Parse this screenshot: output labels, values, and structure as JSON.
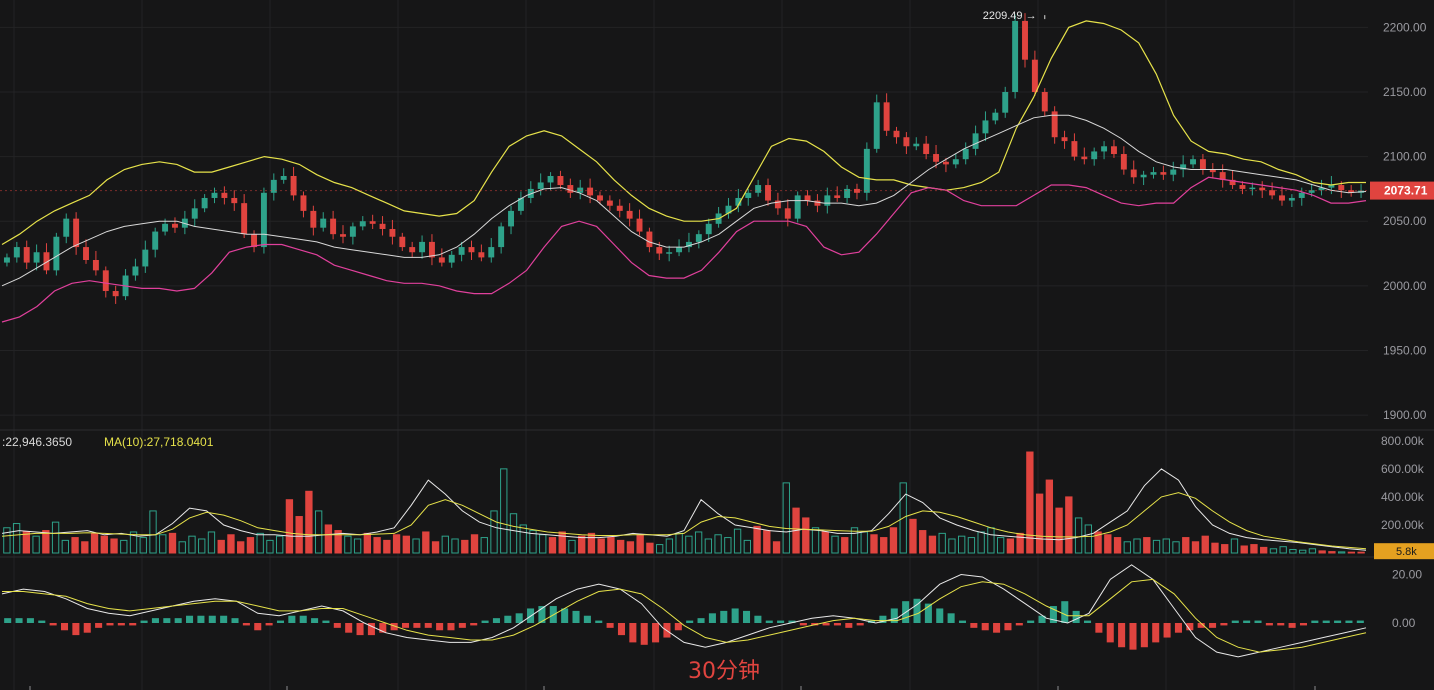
{
  "colors": {
    "background": "#161617",
    "grid": "#232325",
    "up": "#2ea28a",
    "down": "#e0443f",
    "upper_band": "#e6e24a",
    "lower_band": "#e0409c",
    "mid_band": "#d8d8d8",
    "axis_text": "#9a9aa0",
    "volume_ma_a": "#e8e8e8",
    "volume_ma_b": "#e6e24a"
  },
  "chart_data": [
    {
      "type": "candlestick",
      "panel": "price",
      "y_ticks": [
        "2200.00",
        "2150.00",
        "2100.00",
        "2050.00",
        "2000.00",
        "1950.00",
        "1900.00"
      ],
      "y_tick_values": [
        2200,
        2150,
        2100,
        2050,
        2000,
        1950,
        1900
      ],
      "ylim": [
        1890,
        2215
      ],
      "high_marker": {
        "label": "2209.49 →",
        "value": 2209.49
      },
      "last_price": {
        "label": "2073.71",
        "value": 2073.71
      },
      "closes": [
        2022,
        2030,
        2018,
        2026,
        2012,
        2038,
        2052,
        2030,
        2020,
        2012,
        1996,
        1992,
        2008,
        2015,
        2028,
        2042,
        2048,
        2045,
        2052,
        2060,
        2068,
        2072,
        2068,
        2064,
        2040,
        2030,
        2072,
        2082,
        2085,
        2070,
        2058,
        2045,
        2052,
        2040,
        2038,
        2046,
        2050,
        2048,
        2044,
        2038,
        2030,
        2026,
        2034,
        2022,
        2018,
        2024,
        2030,
        2026,
        2022,
        2030,
        2046,
        2058,
        2068,
        2075,
        2080,
        2085,
        2078,
        2072,
        2076,
        2070,
        2066,
        2062,
        2058,
        2052,
        2042,
        2030,
        2025,
        2026,
        2030,
        2034,
        2040,
        2048,
        2056,
        2062,
        2068,
        2072,
        2078,
        2066,
        2060,
        2052,
        2070,
        2066,
        2062,
        2070,
        2068,
        2075,
        2072,
        2106,
        2142,
        2120,
        2115,
        2108,
        2110,
        2102,
        2096,
        2094,
        2098,
        2106,
        2118,
        2128,
        2134,
        2150,
        2205,
        2175,
        2150,
        2135,
        2115,
        2112,
        2100,
        2098,
        2104,
        2108,
        2102,
        2090,
        2084,
        2086,
        2088,
        2086,
        2090,
        2094,
        2098,
        2090,
        2088,
        2082,
        2078,
        2075,
        2076,
        2074,
        2070,
        2066,
        2068,
        2072,
        2074,
        2076,
        2078,
        2074,
        2072,
        2073.71
      ],
      "upper_band": [
        2032,
        2040,
        2050,
        2058,
        2064,
        2070,
        2082,
        2090,
        2094,
        2096,
        2094,
        2088,
        2088,
        2092,
        2096,
        2100,
        2098,
        2094,
        2086,
        2080,
        2076,
        2070,
        2064,
        2058,
        2056,
        2054,
        2056,
        2066,
        2088,
        2108,
        2116,
        2120,
        2116,
        2106,
        2096,
        2082,
        2070,
        2060,
        2054,
        2050,
        2050,
        2052,
        2060,
        2084,
        2108,
        2114,
        2112,
        2104,
        2092,
        2084,
        2082,
        2082,
        2078,
        2076,
        2074,
        2076,
        2080,
        2088,
        2122,
        2146,
        2176,
        2200,
        2205,
        2203,
        2198,
        2188,
        2164,
        2132,
        2112,
        2104,
        2102,
        2098,
        2096,
        2090,
        2086,
        2080,
        2078,
        2080,
        2080
      ],
      "lower_band": [
        1972,
        1976,
        1984,
        1996,
        2002,
        2004,
        2002,
        2000,
        1998,
        1998,
        1996,
        1998,
        2010,
        2026,
        2030,
        2032,
        2032,
        2028,
        2024,
        2016,
        2012,
        2008,
        2004,
        2002,
        2002,
        2000,
        1996,
        1994,
        1994,
        2002,
        2012,
        2030,
        2046,
        2050,
        2046,
        2032,
        2018,
        2008,
        2006,
        2006,
        2012,
        2026,
        2042,
        2050,
        2050,
        2050,
        2046,
        2030,
        2024,
        2026,
        2040,
        2056,
        2072,
        2076,
        2074,
        2066,
        2062,
        2062,
        2062,
        2070,
        2078,
        2078,
        2076,
        2070,
        2064,
        2062,
        2064,
        2064,
        2076,
        2084,
        2082,
        2080,
        2078,
        2076,
        2074,
        2070,
        2064,
        2064,
        2066
      ],
      "mid_band": [
        2000,
        2006,
        2014,
        2022,
        2030,
        2036,
        2042,
        2046,
        2048,
        2050,
        2050,
        2046,
        2044,
        2042,
        2040,
        2040,
        2038,
        2036,
        2034,
        2030,
        2028,
        2026,
        2024,
        2022,
        2022,
        2024,
        2030,
        2040,
        2052,
        2062,
        2070,
        2075,
        2076,
        2072,
        2066,
        2054,
        2042,
        2034,
        2030,
        2030,
        2034,
        2040,
        2050,
        2060,
        2064,
        2066,
        2066,
        2064,
        2064,
        2062,
        2064,
        2070,
        2080,
        2090,
        2098,
        2106,
        2112,
        2118,
        2124,
        2130,
        2132,
        2132,
        2128,
        2122,
        2114,
        2104,
        2096,
        2092,
        2090,
        2090,
        2090,
        2088,
        2086,
        2084,
        2082,
        2078,
        2074,
        2072,
        2073
      ]
    },
    {
      "type": "bar",
      "panel": "volume",
      "legend_text": ":22,946.3650",
      "ma_label": "MA(10):27,718.0401",
      "y_ticks": [
        "800.00k",
        "600.00k",
        "400.00k",
        "200.00k"
      ],
      "y_tick_values": [
        800,
        600,
        400,
        200
      ],
      "ylim": [
        0,
        820
      ],
      "unit": "k",
      "last_volume": {
        "label": "5.8k",
        "value": 5.8
      },
      "volumes": [
        180,
        210,
        150,
        120,
        160,
        220,
        90,
        110,
        80,
        140,
        120,
        100,
        90,
        150,
        110,
        300,
        130,
        140,
        80,
        120,
        100,
        150,
        90,
        130,
        80,
        110,
        140,
        90,
        120,
        380,
        260,
        440,
        300,
        200,
        160,
        120,
        100,
        140,
        110,
        90,
        130,
        120,
        100,
        150,
        80,
        120,
        100,
        90,
        130,
        110,
        300,
        600,
        280,
        200,
        160,
        130,
        110,
        150,
        90,
        120,
        140,
        100,
        110,
        90,
        80,
        130,
        70,
        60,
        100,
        140,
        120,
        150,
        100,
        130,
        110,
        170,
        90,
        190,
        160,
        80,
        500,
        320,
        250,
        180,
        150,
        120,
        110,
        180,
        150,
        130,
        110,
        180,
        500,
        240,
        160,
        120,
        140,
        100,
        120,
        110,
        150,
        180,
        110,
        100,
        140,
        720,
        420,
        520,
        320,
        400,
        250,
        200,
        150,
        130,
        110,
        80,
        100,
        110,
        90,
        100,
        80,
        110,
        80,
        120,
        70,
        60,
        100,
        50,
        60,
        40,
        30,
        45,
        25,
        20,
        30,
        15,
        10,
        8,
        6,
        5.8
      ],
      "ma_a": [
        140,
        160,
        150,
        140,
        150,
        160,
        130,
        140,
        120,
        130,
        210,
        320,
        300,
        200,
        160,
        130,
        130,
        120,
        120,
        130,
        140,
        130,
        150,
        180,
        340,
        520,
        420,
        300,
        220,
        180,
        160,
        140,
        130,
        120,
        110,
        110,
        120,
        140,
        130,
        120,
        160,
        380,
        280,
        200,
        180,
        160,
        150,
        170,
        160,
        140,
        140,
        160,
        280,
        420,
        360,
        250,
        200,
        160,
        130,
        120,
        110,
        100,
        95,
        110,
        140,
        220,
        300,
        480,
        600,
        520,
        330,
        200,
        140,
        110,
        95,
        85,
        75,
        60,
        45,
        30,
        20
      ],
      "ma_b": [
        120,
        130,
        140,
        140,
        140,
        145,
        140,
        135,
        130,
        130,
        170,
        250,
        290,
        270,
        230,
        180,
        160,
        140,
        130,
        130,
        130,
        130,
        135,
        140,
        200,
        340,
        380,
        340,
        280,
        220,
        190,
        170,
        150,
        140,
        130,
        125,
        125,
        130,
        130,
        130,
        140,
        220,
        260,
        250,
        220,
        190,
        175,
        170,
        165,
        160,
        155,
        155,
        190,
        260,
        300,
        290,
        260,
        220,
        180,
        150,
        130,
        120,
        115,
        115,
        120,
        150,
        200,
        300,
        400,
        430,
        390,
        300,
        220,
        160,
        120,
        100,
        80,
        65,
        50,
        40,
        30
      ]
    },
    {
      "type": "histogram",
      "panel": "macd",
      "y_ticks": [
        "20.00",
        "0.00"
      ],
      "y_tick_values": [
        20,
        0
      ],
      "ylim": [
        -26,
        26
      ],
      "histogram": [
        2,
        2,
        2,
        1,
        -1,
        -3,
        -5,
        -4,
        -2,
        -1,
        -1,
        -1,
        1,
        2,
        2,
        2,
        3,
        3,
        3,
        3,
        2,
        -1,
        -3,
        -1,
        1,
        3,
        3,
        2,
        1,
        -2,
        -4,
        -5,
        -5,
        -4,
        -3,
        -2,
        -2,
        -2,
        -3,
        -3,
        -2,
        -1,
        1,
        2,
        3,
        4,
        6,
        7,
        7,
        6,
        5,
        3,
        1,
        -2,
        -5,
        -8,
        -9,
        -8,
        -6,
        -3,
        1,
        2,
        4,
        5,
        6,
        5,
        3,
        1,
        1,
        1,
        -1,
        -1,
        -1,
        -1,
        -2,
        -1,
        1,
        3,
        6,
        9,
        10,
        8,
        6,
        4,
        1,
        -2,
        -3,
        -4,
        -3,
        -1,
        1,
        3,
        7,
        9,
        5,
        1,
        -4,
        -8,
        -10,
        -11,
        -10,
        -8,
        -6,
        -4,
        -3,
        -2,
        -2,
        -1,
        1,
        1,
        1,
        -1,
        -1,
        -2,
        -1,
        1,
        1,
        1,
        1,
        1
      ],
      "macd_line": [
        12,
        14,
        13,
        10,
        6,
        4,
        3,
        5,
        7,
        9,
        10,
        9,
        4,
        3,
        5,
        7,
        5,
        0,
        -4,
        -6,
        -7,
        -8,
        -8,
        -6,
        -2,
        4,
        10,
        14,
        16,
        14,
        8,
        -2,
        -8,
        -10,
        -8,
        -5,
        -2,
        0,
        2,
        3,
        2,
        0,
        2,
        8,
        16,
        20,
        19,
        14,
        8,
        2,
        0,
        4,
        18,
        24,
        18,
        6,
        -6,
        -12,
        -14,
        -12,
        -10,
        -8,
        -6,
        -4,
        -2
      ],
      "signal_line": [
        13,
        13,
        12,
        11,
        8,
        6,
        5,
        6,
        7,
        8,
        9,
        9,
        7,
        5,
        5,
        6,
        6,
        3,
        0,
        -3,
        -5,
        -6,
        -7,
        -7,
        -5,
        -1,
        4,
        9,
        13,
        14,
        12,
        6,
        -1,
        -6,
        -8,
        -7,
        -5,
        -3,
        -1,
        1,
        2,
        1,
        1,
        4,
        10,
        15,
        17,
        16,
        12,
        7,
        3,
        3,
        10,
        17,
        18,
        12,
        2,
        -6,
        -10,
        -12,
        -11,
        -10,
        -8,
        -6,
        -4
      ]
    }
  ],
  "watermark": "30分钟"
}
